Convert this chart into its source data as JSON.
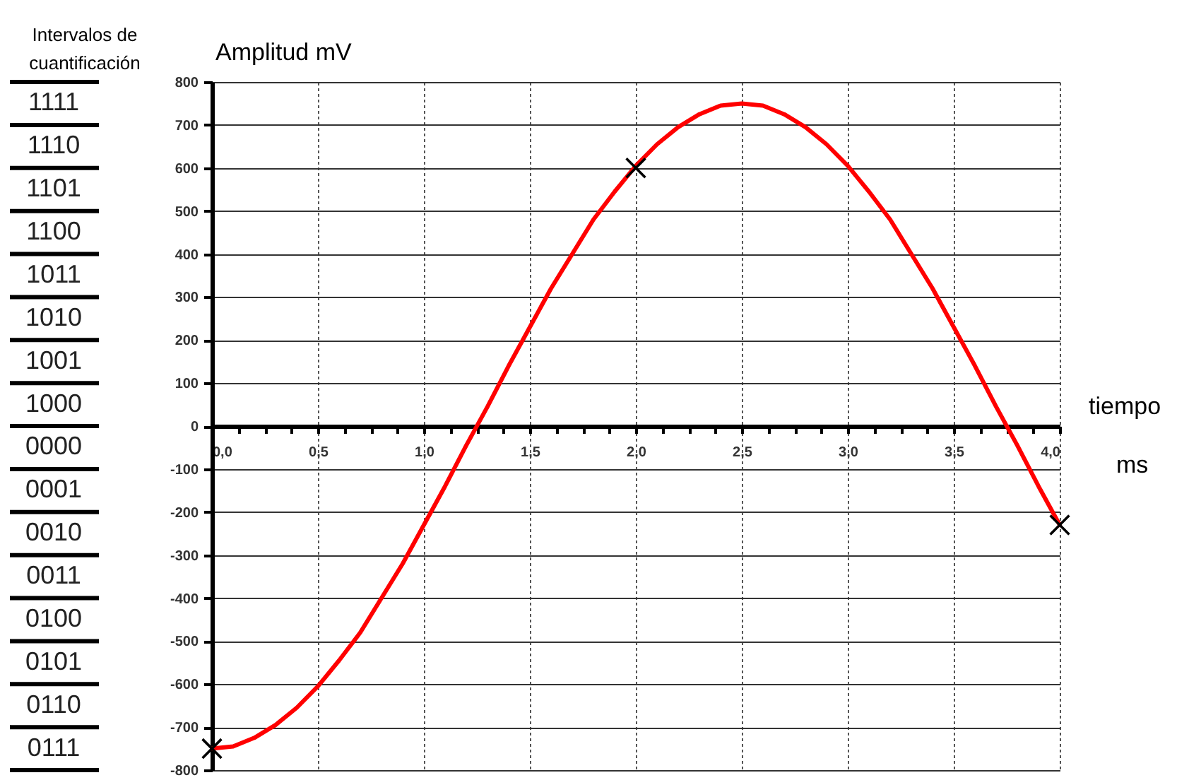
{
  "chart_data": {
    "type": "line",
    "ylabel": "Amplitud mV",
    "xlabel": "tiempo",
    "annotations": [
      "Intervalos de cuantificación",
      "1111",
      "1110",
      "1101",
      "1100",
      "1011",
      "1010",
      "1001",
      "1000",
      "0000",
      "0001",
      "0010",
      "0011",
      "0100",
      "0101",
      "0110",
      "0111",
      "ms"
    ],
    "xlim": [
      0,
      4
    ],
    "xticks": [
      {
        "value": 0,
        "label": "0,0"
      },
      {
        "value": 0.125,
        "label": null
      },
      {
        "value": 0.25,
        "label": null
      },
      {
        "value": 0.375,
        "label": null
      },
      {
        "value": 0.5,
        "label": "0,5"
      },
      {
        "value": 0.625,
        "label": null
      },
      {
        "value": 0.75,
        "label": null
      },
      {
        "value": 0.875,
        "label": null
      },
      {
        "value": 1,
        "label": "1,0"
      },
      {
        "value": 1.125,
        "label": null
      },
      {
        "value": 1.25,
        "label": null
      },
      {
        "value": 1.375,
        "label": null
      },
      {
        "value": 1.5,
        "label": "1,5"
      },
      {
        "value": 1.625,
        "label": null
      },
      {
        "value": 1.75,
        "label": null
      },
      {
        "value": 1.875,
        "label": null
      },
      {
        "value": 2,
        "label": "2,0"
      },
      {
        "value": 2.125,
        "label": null
      },
      {
        "value": 2.25,
        "label": null
      },
      {
        "value": 2.375,
        "label": null
      },
      {
        "value": 2.5,
        "label": "2,5"
      },
      {
        "value": 2.625,
        "label": null
      },
      {
        "value": 2.75,
        "label": null
      },
      {
        "value": 2.875,
        "label": null
      },
      {
        "value": 3,
        "label": "3,0"
      },
      {
        "value": 3.125,
        "label": null
      },
      {
        "value": 3.25,
        "label": null
      },
      {
        "value": 3.375,
        "label": null
      },
      {
        "value": 3.5,
        "label": "3,5"
      },
      {
        "value": 3.625,
        "label": null
      },
      {
        "value": 3.75,
        "label": null
      },
      {
        "value": 3.875,
        "label": null
      },
      {
        "value": 4,
        "label": "4,0"
      }
    ],
    "ylim": [
      -800,
      800
    ],
    "yticks": [
      -800,
      -700,
      -600,
      -500,
      -400,
      -300,
      -200,
      -100,
      0,
      100,
      200,
      300,
      400,
      500,
      600,
      700,
      800
    ],
    "grid": true,
    "series": [
      {
        "color": "#ff0000",
        "x": [
          0,
          0.1,
          0.2,
          0.3,
          0.4,
          0.5,
          0.6,
          0.7,
          0.8,
          0.9,
          1.0,
          1.1,
          1.2,
          1.3,
          1.4,
          1.5,
          1.6,
          1.7,
          1.8,
          1.9,
          2.0,
          2.1,
          2.2,
          2.3,
          2.4,
          2.5,
          2.6,
          2.7,
          2.8,
          2.9,
          3.0,
          3.1,
          3.2,
          3.3,
          3.4,
          3.5,
          3.6,
          3.7,
          3.8,
          3.9,
          4.0
        ],
        "values": [
          -750,
          -745,
          -725,
          -695,
          -655,
          -605,
          -545,
          -480,
          -400,
          -320,
          -230,
          -140,
          -45,
          45,
          140,
          230,
          320,
          400,
          480,
          545,
          605,
          655,
          695,
          725,
          745,
          750,
          745,
          725,
          695,
          655,
          605,
          545,
          480,
          400,
          320,
          230,
          140,
          45,
          -45,
          -140,
          -230
        ]
      },
      {
        "type": "scatter",
        "marker": "cross",
        "color": "#000000",
        "x": [
          0,
          2,
          4
        ],
        "values": [
          -750,
          600,
          -230
        ]
      }
    ]
  }
}
